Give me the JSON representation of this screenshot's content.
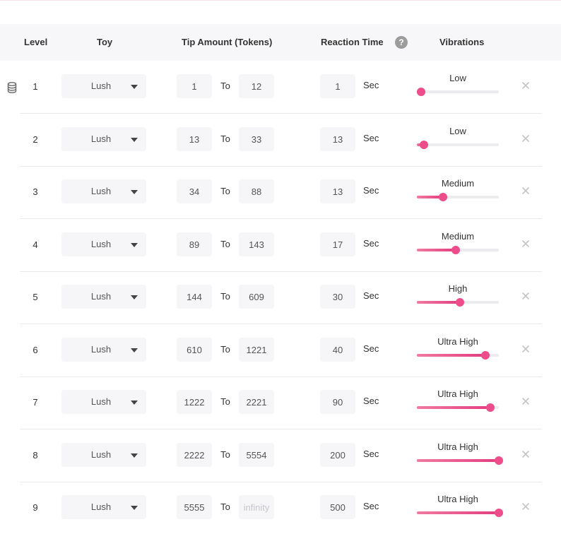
{
  "header": {
    "level": "Level",
    "toy": "Toy",
    "tip_amount": "Tip Amount (Tokens)",
    "reaction_time": "Reaction Time",
    "help_icon_glyph": "?",
    "vibrations": "Vibrations"
  },
  "labels": {
    "to": "To",
    "sec": "Sec",
    "infinity_placeholder": "infinity"
  },
  "rows": [
    {
      "level": "1",
      "toy": "Lush",
      "from": "1",
      "to": "12",
      "reaction": "1",
      "vibration": "Low",
      "intensity": 0.05
    },
    {
      "level": "2",
      "toy": "Lush",
      "from": "13",
      "to": "33",
      "reaction": "13",
      "vibration": "Low",
      "intensity": 0.09
    },
    {
      "level": "3",
      "toy": "Lush",
      "from": "34",
      "to": "88",
      "reaction": "13",
      "vibration": "Medium",
      "intensity": 0.32
    },
    {
      "level": "4",
      "toy": "Lush",
      "from": "89",
      "to": "143",
      "reaction": "17",
      "vibration": "Medium",
      "intensity": 0.47
    },
    {
      "level": "5",
      "toy": "Lush",
      "from": "144",
      "to": "609",
      "reaction": "30",
      "vibration": "High",
      "intensity": 0.53
    },
    {
      "level": "6",
      "toy": "Lush",
      "from": "610",
      "to": "1221",
      "reaction": "40",
      "vibration": "Ultra High",
      "intensity": 0.84
    },
    {
      "level": "7",
      "toy": "Lush",
      "from": "1222",
      "to": "2221",
      "reaction": "90",
      "vibration": "Ultra High",
      "intensity": 0.9
    },
    {
      "level": "8",
      "toy": "Lush",
      "from": "2222",
      "to": "5554",
      "reaction": "200",
      "vibration": "Ultra High",
      "intensity": 1.0
    },
    {
      "level": "9",
      "toy": "Lush",
      "from": "5555",
      "to": "",
      "reaction": "500",
      "vibration": "Ultra High",
      "intensity": 1.0
    }
  ],
  "colors": {
    "accent": "#ee4d8c",
    "header_bg": "#f7f7f9",
    "input_bg": "#f6f6f8",
    "track": "#ececef"
  },
  "icons": {
    "reorder": "database-icon",
    "remove": "close-icon",
    "dropdown": "caret-down-icon",
    "help": "question-circle-icon"
  }
}
